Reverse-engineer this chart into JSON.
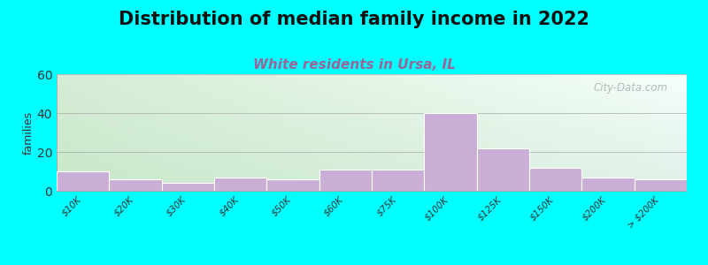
{
  "title": "Distribution of median family income in 2022",
  "subtitle": "White residents in Ursa, IL",
  "ylabel": "families",
  "background_color": "#00FFFF",
  "plot_bg_topleft": "#d8edd8",
  "plot_bg_topright": "#ffffff",
  "plot_bg_bottomleft": "#d8edd8",
  "plot_bg_bottomright": "#e8f5f0",
  "bar_color": "#c9aed6",
  "bar_edge_color": "#ffffff",
  "categories": [
    "$10K",
    "$20K",
    "$30K",
    "$40K",
    "$50K",
    "$60K",
    "$75K",
    "$100K",
    "$125K",
    "$150K",
    "$200K",
    "> $200K"
  ],
  "values": [
    10,
    6,
    4,
    7,
    6,
    11,
    11,
    40,
    22,
    12,
    7,
    6
  ],
  "ylim": [
    0,
    60
  ],
  "yticks": [
    0,
    20,
    40,
    60
  ],
  "title_fontsize": 15,
  "subtitle_fontsize": 11,
  "subtitle_color": "#996699",
  "watermark": "City-Data.com"
}
